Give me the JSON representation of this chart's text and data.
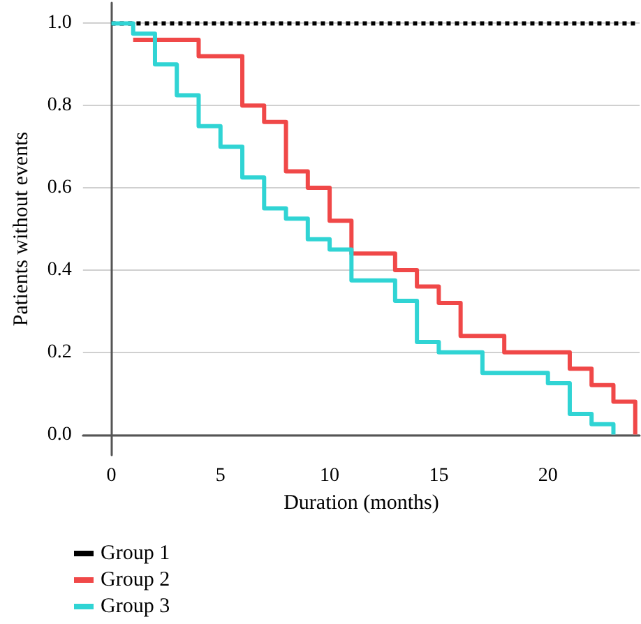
{
  "chart_data": {
    "type": "step",
    "xlabel": "Duration (months)",
    "ylabel": "Patients without events",
    "xlim": [
      -1.3,
      24.2
    ],
    "xticks": [
      0,
      5,
      10,
      15,
      20
    ],
    "ylim": [
      -0.05,
      1.05
    ],
    "yticks": [
      {
        "value": 0,
        "label": "0.0"
      },
      0.2,
      0.4,
      0.6,
      0.8,
      {
        "value": 1,
        "label": "1.0"
      }
    ],
    "grid": "y",
    "legend": "bottom left",
    "series": [
      {
        "name": "Group 1",
        "color": "#000000",
        "line_style": "dotted",
        "x": [
          0,
          24
        ],
        "values": [
          1,
          1
        ]
      },
      {
        "name": "Group 2",
        "color": "#f04848",
        "x": [
          1,
          4,
          6,
          7,
          8,
          9,
          10,
          11,
          13,
          14,
          15,
          16,
          18,
          21,
          22,
          23,
          24
        ],
        "values": [
          0.96,
          0.92,
          0.8,
          0.76,
          0.64,
          0.6,
          0.52,
          0.44,
          0.4,
          0.36,
          0.32,
          0.24,
          0.2,
          0.16,
          0.12,
          0.08,
          0
        ]
      },
      {
        "name": "Group 3",
        "color": "#30d4d4",
        "x": [
          0,
          1,
          2,
          3,
          4,
          5,
          6,
          7,
          8,
          9,
          10,
          11,
          13,
          14,
          15,
          17,
          20,
          21,
          22,
          23
        ],
        "values": [
          1,
          0.975,
          0.9,
          0.825,
          0.75,
          0.7,
          0.625,
          0.55,
          0.525,
          0.475,
          0.45,
          0.375,
          0.325,
          0.225,
          0.2,
          0.15,
          0.125,
          0.05,
          0.025,
          0
        ]
      }
    ]
  }
}
